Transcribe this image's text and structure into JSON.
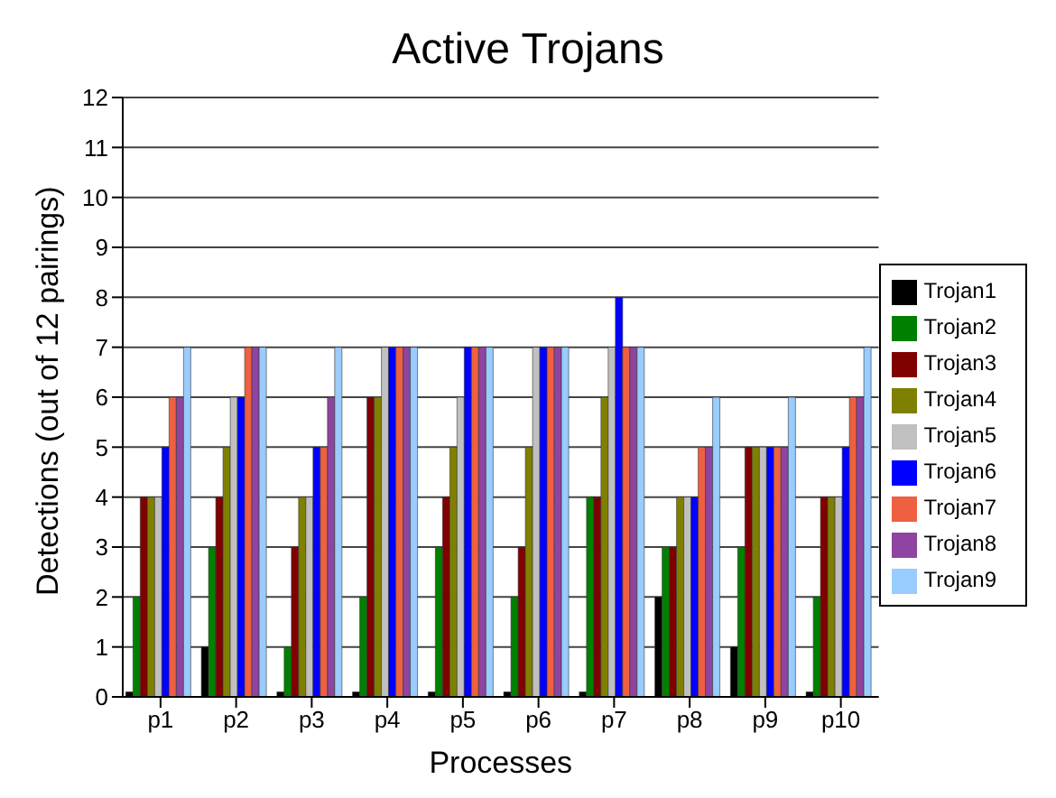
{
  "chart_data": {
    "type": "bar",
    "title": "Active Trojans",
    "xlabel": "Processes",
    "ylabel": "Detections (out of 12 pairings)",
    "categories": [
      "p1",
      "p2",
      "p3",
      "p4",
      "p5",
      "p6",
      "p7",
      "p8",
      "p9",
      "p10"
    ],
    "series": [
      {
        "name": "Trojan1",
        "color": "#000000",
        "values": [
          0.1,
          1,
          0.1,
          0.1,
          0.1,
          0.1,
          0.1,
          2,
          1,
          0.1
        ]
      },
      {
        "name": "Trojan2",
        "color": "#008000",
        "values": [
          2,
          3,
          1,
          2,
          3,
          2,
          4,
          3,
          3,
          2
        ]
      },
      {
        "name": "Trojan3",
        "color": "#800000",
        "values": [
          4,
          4,
          3,
          6,
          4,
          3,
          4,
          3,
          5,
          4
        ]
      },
      {
        "name": "Trojan4",
        "color": "#808000",
        "values": [
          4,
          5,
          4,
          6,
          5,
          5,
          6,
          4,
          5,
          4
        ]
      },
      {
        "name": "Trojan5",
        "color": "#c0c0c0",
        "values": [
          4,
          6,
          4,
          7,
          6,
          7,
          7,
          4,
          5,
          4
        ]
      },
      {
        "name": "Trojan6",
        "color": "#0000ff",
        "values": [
          5,
          6,
          5,
          7,
          7,
          7,
          8,
          4,
          5,
          5
        ]
      },
      {
        "name": "Trojan7",
        "color": "#ee6040",
        "values": [
          6,
          7,
          5,
          7,
          7,
          7,
          7,
          5,
          5,
          6
        ]
      },
      {
        "name": "Trojan8",
        "color": "#8e44a0",
        "values": [
          6,
          7,
          6,
          7,
          7,
          7,
          7,
          5,
          5,
          6
        ]
      },
      {
        "name": "Trojan9",
        "color": "#99ccff",
        "values": [
          7,
          7,
          7,
          7,
          7,
          7,
          7,
          6,
          6,
          7
        ]
      }
    ],
    "ylim": [
      0,
      12
    ],
    "yticks": [
      0,
      1,
      2,
      3,
      4,
      5,
      6,
      7,
      8,
      9,
      10,
      11,
      12
    ],
    "grid": "y",
    "legend": "right"
  }
}
